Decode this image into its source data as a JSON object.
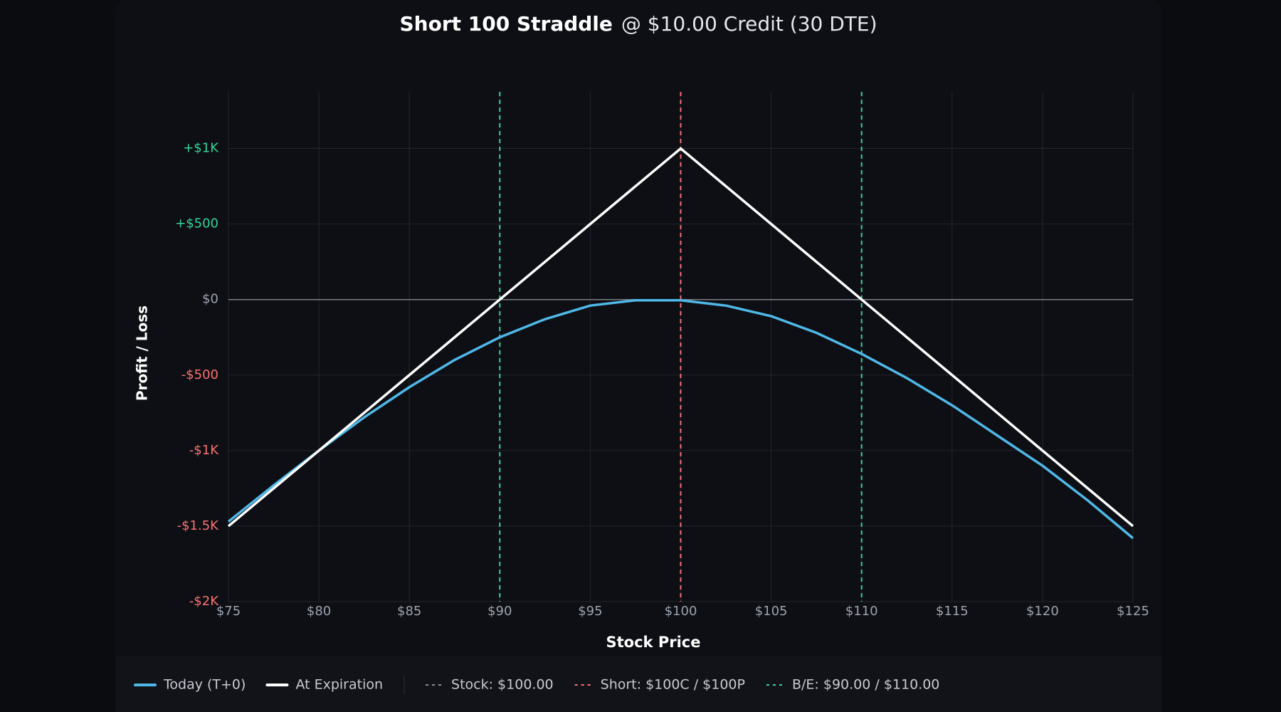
{
  "chart_data": {
    "type": "line",
    "title": "Short 100 Straddle",
    "subtitle": "@ $10.00 Credit (30 DTE)",
    "x_label": "Stock Price",
    "y_label": "Profit / Loss",
    "x": [
      75,
      77.5,
      80,
      82.5,
      85,
      87.5,
      90,
      92.5,
      95,
      97.5,
      100,
      102.5,
      105,
      107.5,
      110,
      112.5,
      115,
      117.5,
      120,
      122.5,
      125
    ],
    "series": [
      {
        "name": "Today (T+0)",
        "color": "#4fb8e8",
        "values": [
          -1470,
          -1230,
          -1000,
          -780,
          -580,
          -400,
          -250,
          -130,
          -40,
          -5,
          -5,
          -40,
          -110,
          -220,
          -360,
          -520,
          -700,
          -900,
          -1100,
          -1330,
          -1580
        ]
      },
      {
        "name": "At Expiration",
        "color": "#ffffff",
        "values": [
          -1500,
          -1250,
          -1000,
          -750,
          -500,
          -250,
          0,
          250,
          500,
          750,
          1000,
          750,
          500,
          250,
          0,
          -250,
          -500,
          -750,
          -1000,
          -1250,
          -1500
        ]
      }
    ],
    "markers": [
      {
        "label": "Stock: $100.00",
        "color": "#8a8f98",
        "values": [
          100
        ]
      },
      {
        "label": "Short: $100C / $100P",
        "color": "#f87171",
        "values": [
          100
        ]
      },
      {
        "label": "B/E: $90.00 / $110.00",
        "color": "#34d399",
        "values": [
          90,
          110
        ]
      }
    ],
    "xlim": [
      75,
      125
    ],
    "ylim": [
      -2000,
      1375
    ],
    "xticks": [
      {
        "value": 75,
        "label": "$75"
      },
      {
        "value": 80,
        "label": "$80"
      },
      {
        "value": 85,
        "label": "$85"
      },
      {
        "value": 90,
        "label": "$90"
      },
      {
        "value": 95,
        "label": "$95"
      },
      {
        "value": 100,
        "label": "$100"
      },
      {
        "value": 105,
        "label": "$105"
      },
      {
        "value": 110,
        "label": "$110"
      },
      {
        "value": 115,
        "label": "$115"
      },
      {
        "value": 120,
        "label": "$120"
      },
      {
        "value": 125,
        "label": "$125"
      }
    ],
    "yticks": [
      {
        "value": 1000,
        "label": "+$1K"
      },
      {
        "value": 500,
        "label": "+$500"
      },
      {
        "value": 0,
        "label": "$0"
      },
      {
        "value": -500,
        "label": "-$500"
      },
      {
        "value": -1000,
        "label": "-$1K"
      },
      {
        "value": -1500,
        "label": "-$1.5K"
      },
      {
        "value": -2000,
        "label": "-$2K"
      }
    ],
    "grid": true
  }
}
